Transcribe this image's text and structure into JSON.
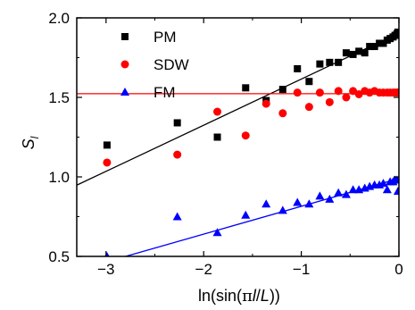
{
  "chart_data": {
    "type": "scatter",
    "xlabel": "ln(sin(πl/L))",
    "ylabel": "S_l",
    "xlim": [
      -3.3,
      0.0
    ],
    "ylim": [
      0.5,
      2.0
    ],
    "xticks": [
      -3,
      -2,
      -1,
      0
    ],
    "xtick_labels": [
      "−3",
      "−2",
      "−1",
      "0"
    ],
    "yticks": [
      0.5,
      1.0,
      1.5,
      2.0
    ],
    "ytick_labels": [
      "0.5",
      "1.0",
      "1.5",
      "2.0"
    ],
    "legend_position": "top-center",
    "series": [
      {
        "name": "PM",
        "marker": "square",
        "color": "#000000",
        "x": [
          -2.99,
          -2.27,
          -1.86,
          -1.57,
          -1.36,
          -1.19,
          -1.04,
          -0.92,
          -0.81,
          -0.71,
          -0.62,
          -0.54,
          -0.47,
          -0.41,
          -0.35,
          -0.3,
          -0.25,
          -0.2,
          -0.16,
          -0.12,
          -0.09,
          -0.06,
          -0.04,
          -0.02,
          -0.01
        ],
        "y": [
          1.2,
          1.34,
          1.25,
          1.56,
          1.48,
          1.55,
          1.68,
          1.6,
          1.71,
          1.72,
          1.72,
          1.78,
          1.77,
          1.79,
          1.78,
          1.82,
          1.82,
          1.84,
          1.84,
          1.86,
          1.87,
          1.88,
          1.89,
          1.9,
          1.91
        ],
        "fit": {
          "slope": 0.29,
          "intercept": 1.905
        }
      },
      {
        "name": "SDW",
        "marker": "circle",
        "color": "#ff0000",
        "x": [
          -2.99,
          -2.27,
          -1.86,
          -1.57,
          -1.36,
          -1.19,
          -1.04,
          -0.92,
          -0.81,
          -0.71,
          -0.62,
          -0.54,
          -0.47,
          -0.41,
          -0.35,
          -0.3,
          -0.25,
          -0.2,
          -0.16,
          -0.12,
          -0.09,
          -0.06,
          -0.04,
          -0.02,
          -0.01
        ],
        "y": [
          1.09,
          1.14,
          1.41,
          1.26,
          1.46,
          1.4,
          1.53,
          1.44,
          1.53,
          1.47,
          1.54,
          1.5,
          1.54,
          1.52,
          1.54,
          1.53,
          1.54,
          1.53,
          1.53,
          1.53,
          1.53,
          1.53,
          1.53,
          1.53,
          1.53
        ],
        "fit": {
          "slope": 0.0,
          "intercept": 1.523
        }
      },
      {
        "name": "FM",
        "marker": "triangle",
        "color": "#0000ff",
        "x": [
          -2.99,
          -2.27,
          -1.86,
          -1.57,
          -1.36,
          -1.19,
          -1.04,
          -0.92,
          -0.81,
          -0.71,
          -0.62,
          -0.54,
          -0.47,
          -0.41,
          -0.35,
          -0.3,
          -0.25,
          -0.2,
          -0.16,
          -0.12,
          -0.09,
          -0.06,
          -0.04,
          -0.02,
          -0.01
        ],
        "y": [
          0.5,
          0.75,
          0.65,
          0.76,
          0.83,
          0.79,
          0.84,
          0.83,
          0.88,
          0.86,
          0.9,
          0.89,
          0.92,
          0.92,
          0.93,
          0.94,
          0.95,
          0.95,
          0.96,
          0.92,
          0.97,
          0.97,
          0.98,
          0.98,
          0.91
        ],
        "fit": {
          "slope": 0.175,
          "intercept": 0.99
        }
      }
    ]
  }
}
